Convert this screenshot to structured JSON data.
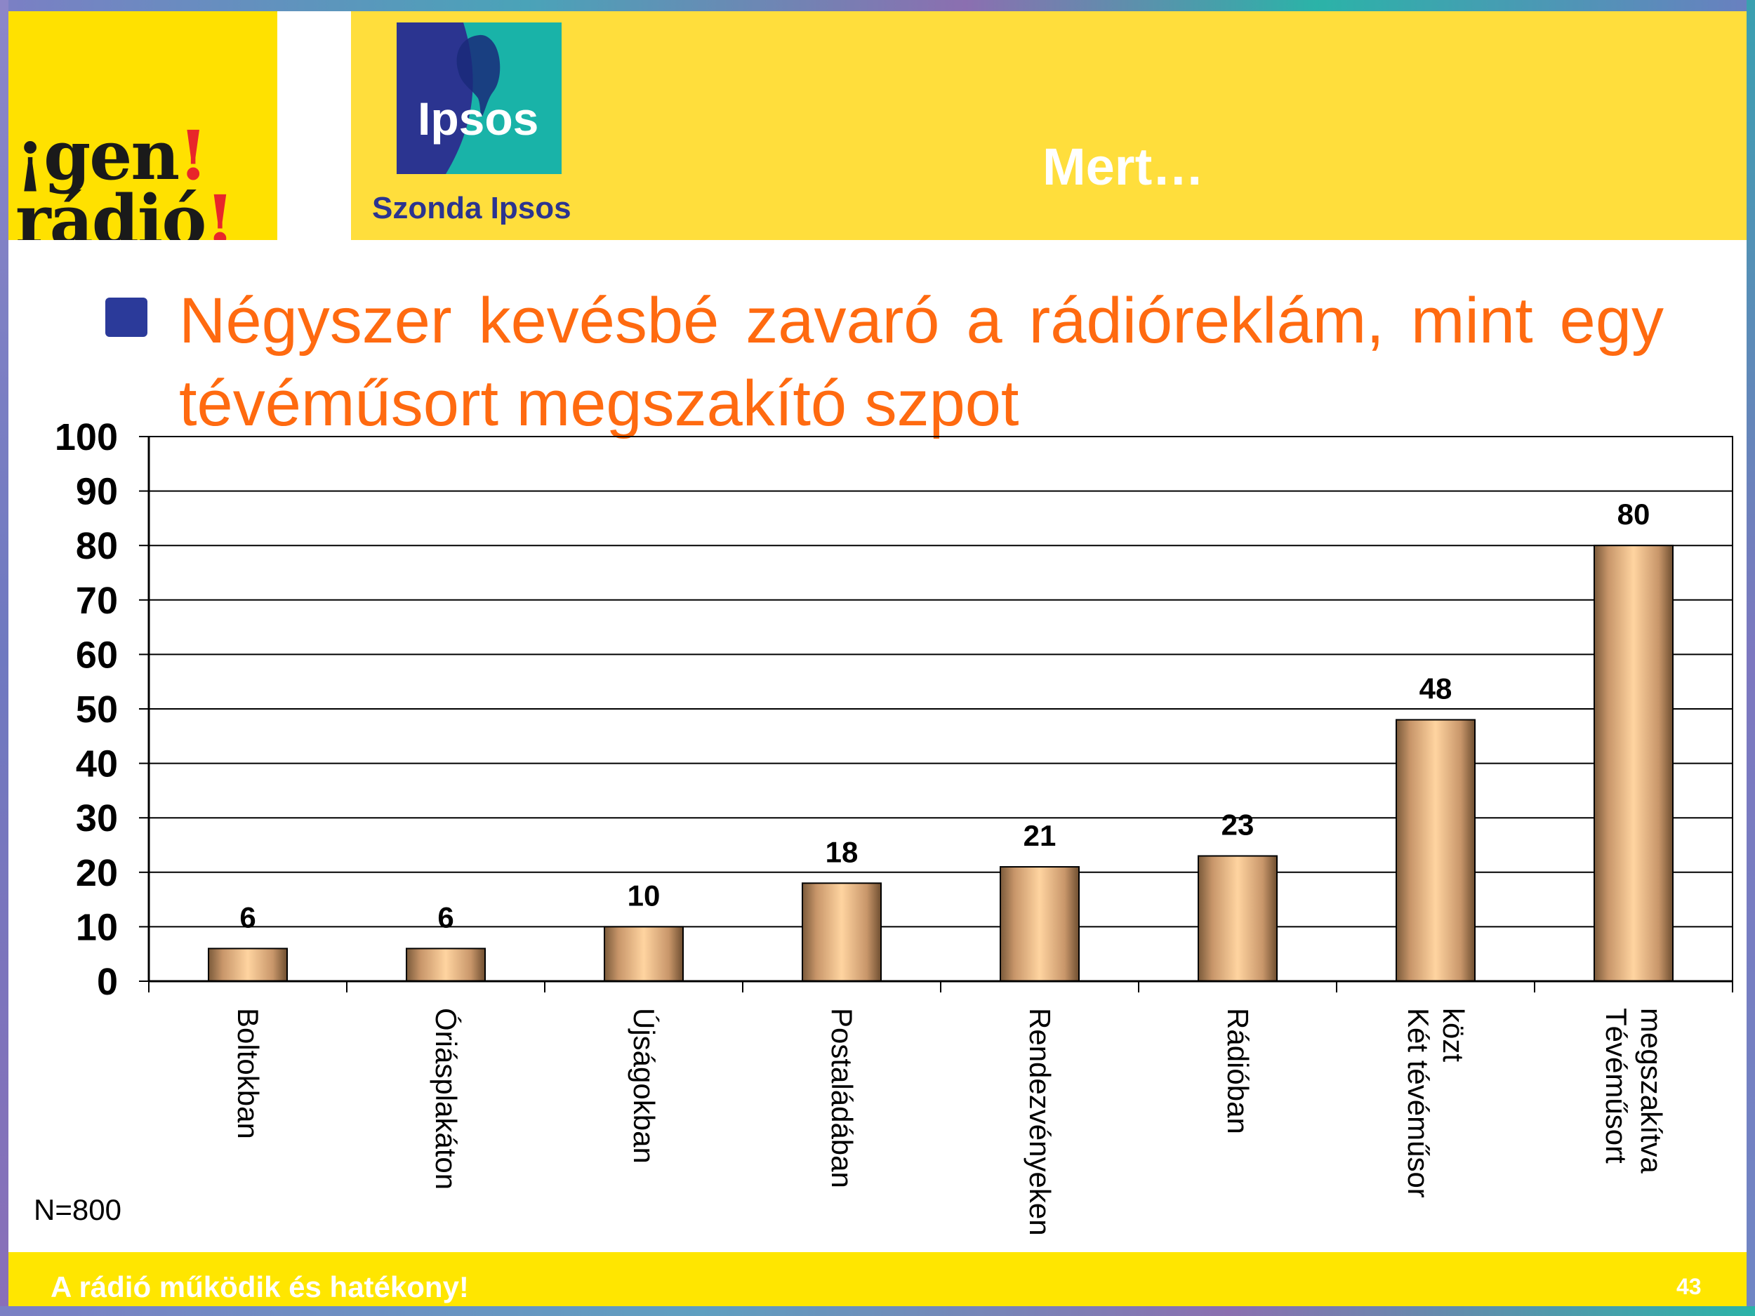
{
  "header": {
    "logo_text_line1": "¡gen",
    "logo_text_line2": "rádió",
    "logo_bang": "!",
    "ipsos_logo_text": "Ipsos",
    "ipsos_caption": "Szonda Ipsos",
    "title": "Mert…"
  },
  "headline": "Négyszer kevésbé zavaró a rádióreklám, mint egy tévéműsort megszakító szpot",
  "sample_note": "N=800",
  "footer": {
    "text": "A rádió működik és hatékony!",
    "page_number": "43"
  },
  "colors": {
    "header_band": "#ffde3c",
    "logo_box": "#ffe100",
    "headline": "#ff6a10",
    "bullet": "#2b3a9a",
    "bar_light": "#ffd4a0",
    "bar_dark": "#7a5a3a"
  },
  "chart_data": {
    "type": "bar",
    "categories": [
      "Boltokban",
      "Óriásplakáton",
      "Újságokban",
      "Postaládában",
      "Rendezvényeken",
      "Rádióban",
      "Két tévéműsor közt",
      "Tévéműsort megszakítva"
    ],
    "category_lines": [
      [
        "Boltokban"
      ],
      [
        "Óriásplakáton"
      ],
      [
        "Újságokban"
      ],
      [
        "Postaládában"
      ],
      [
        "Rendezvényeken"
      ],
      [
        "Rádióban"
      ],
      [
        "Két tévéműsor",
        "közt"
      ],
      [
        "Tévéműsort",
        "megszakítva"
      ]
    ],
    "values": [
      6,
      6,
      10,
      18,
      21,
      23,
      48,
      80
    ],
    "ylim": [
      0,
      100
    ],
    "yticks": [
      0,
      10,
      20,
      30,
      40,
      50,
      60,
      70,
      80,
      90,
      100
    ],
    "grid": true,
    "data_labels": true,
    "legend": "none"
  }
}
